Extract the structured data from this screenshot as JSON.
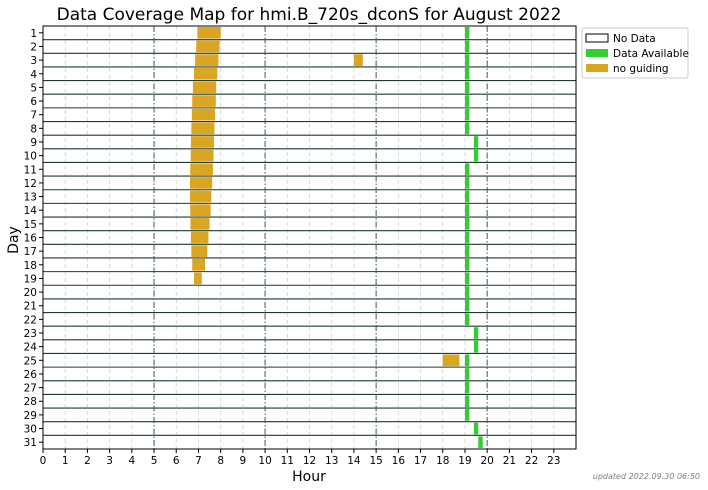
{
  "chart_data": {
    "type": "heatmap",
    "title": "Data Coverage Map for hmi.B_720s_dconS for August 2022",
    "xlabel": "Hour",
    "ylabel": "Day",
    "xlim": [
      0,
      24
    ],
    "ylim": [
      1,
      31
    ],
    "x_ticks": [
      "0",
      "1",
      "2",
      "3",
      "4",
      "5",
      "6",
      "7",
      "8",
      "9",
      "10",
      "11",
      "12",
      "13",
      "14",
      "15",
      "16",
      "17",
      "18",
      "19",
      "20",
      "21",
      "22",
      "23"
    ],
    "y_ticks": [
      "1",
      "2",
      "3",
      "4",
      "5",
      "6",
      "7",
      "8",
      "9",
      "10",
      "11",
      "12",
      "13",
      "14",
      "15",
      "16",
      "17",
      "18",
      "19",
      "20",
      "21",
      "22",
      "23",
      "24",
      "25",
      "26",
      "27",
      "28",
      "29",
      "30",
      "31"
    ],
    "major_gridlines_hours": [
      5,
      10,
      15,
      20
    ],
    "legend_position": "outside-right-top",
    "legend": [
      {
        "label": "No Data",
        "color": "#ffffff"
      },
      {
        "label": "Data Available",
        "color": "#33cc33"
      },
      {
        "label": "no guiding",
        "color": "#daa520"
      }
    ],
    "series": [
      {
        "name": "Data Available",
        "color": "#33cc33",
        "segments": [
          {
            "day": 1,
            "start": 19.0,
            "end": 19.2
          },
          {
            "day": 2,
            "start": 19.0,
            "end": 19.2
          },
          {
            "day": 3,
            "start": 19.0,
            "end": 19.2
          },
          {
            "day": 4,
            "start": 19.0,
            "end": 19.2
          },
          {
            "day": 5,
            "start": 19.0,
            "end": 19.2
          },
          {
            "day": 6,
            "start": 19.0,
            "end": 19.2
          },
          {
            "day": 7,
            "start": 19.0,
            "end": 19.2
          },
          {
            "day": 8,
            "start": 19.0,
            "end": 19.2
          },
          {
            "day": 9,
            "start": 19.4,
            "end": 19.6
          },
          {
            "day": 10,
            "start": 19.4,
            "end": 19.6
          },
          {
            "day": 11,
            "start": 19.0,
            "end": 19.2
          },
          {
            "day": 12,
            "start": 19.0,
            "end": 19.2
          },
          {
            "day": 13,
            "start": 19.0,
            "end": 19.2
          },
          {
            "day": 14,
            "start": 19.0,
            "end": 19.2
          },
          {
            "day": 15,
            "start": 19.0,
            "end": 19.2
          },
          {
            "day": 16,
            "start": 19.0,
            "end": 19.2
          },
          {
            "day": 17,
            "start": 19.0,
            "end": 19.2
          },
          {
            "day": 18,
            "start": 19.0,
            "end": 19.2
          },
          {
            "day": 19,
            "start": 19.0,
            "end": 19.2
          },
          {
            "day": 20,
            "start": 19.0,
            "end": 19.2
          },
          {
            "day": 21,
            "start": 19.0,
            "end": 19.2
          },
          {
            "day": 22,
            "start": 19.0,
            "end": 19.2
          },
          {
            "day": 23,
            "start": 19.4,
            "end": 19.6
          },
          {
            "day": 24,
            "start": 19.4,
            "end": 19.6
          },
          {
            "day": 25,
            "start": 19.0,
            "end": 19.2
          },
          {
            "day": 26,
            "start": 19.0,
            "end": 19.2
          },
          {
            "day": 27,
            "start": 19.0,
            "end": 19.2
          },
          {
            "day": 28,
            "start": 19.0,
            "end": 19.2
          },
          {
            "day": 29,
            "start": 19.0,
            "end": 19.2
          },
          {
            "day": 30,
            "start": 19.4,
            "end": 19.6
          },
          {
            "day": 31,
            "start": 19.6,
            "end": 19.8
          }
        ]
      },
      {
        "name": "no guiding",
        "color": "#daa520",
        "segments": [
          {
            "day": 1,
            "start": 6.95,
            "end": 8.0
          },
          {
            "day": 2,
            "start": 6.9,
            "end": 7.95
          },
          {
            "day": 3,
            "start": 6.85,
            "end": 7.9
          },
          {
            "day": 3,
            "start": 14.0,
            "end": 14.4
          },
          {
            "day": 4,
            "start": 6.8,
            "end": 7.85
          },
          {
            "day": 5,
            "start": 6.75,
            "end": 7.8
          },
          {
            "day": 6,
            "start": 6.72,
            "end": 7.78
          },
          {
            "day": 7,
            "start": 6.7,
            "end": 7.75
          },
          {
            "day": 8,
            "start": 6.68,
            "end": 7.72
          },
          {
            "day": 9,
            "start": 6.66,
            "end": 7.7
          },
          {
            "day": 10,
            "start": 6.65,
            "end": 7.68
          },
          {
            "day": 11,
            "start": 6.63,
            "end": 7.65
          },
          {
            "day": 12,
            "start": 6.62,
            "end": 7.62
          },
          {
            "day": 13,
            "start": 6.62,
            "end": 7.58
          },
          {
            "day": 14,
            "start": 6.63,
            "end": 7.55
          },
          {
            "day": 15,
            "start": 6.64,
            "end": 7.5
          },
          {
            "day": 16,
            "start": 6.66,
            "end": 7.45
          },
          {
            "day": 17,
            "start": 6.68,
            "end": 7.4
          },
          {
            "day": 18,
            "start": 6.72,
            "end": 7.3
          },
          {
            "day": 19,
            "start": 6.8,
            "end": 7.15
          },
          {
            "day": 25,
            "start": 18.0,
            "end": 18.75
          }
        ]
      }
    ],
    "footnote": "updated 2022.09.30 06:50"
  }
}
